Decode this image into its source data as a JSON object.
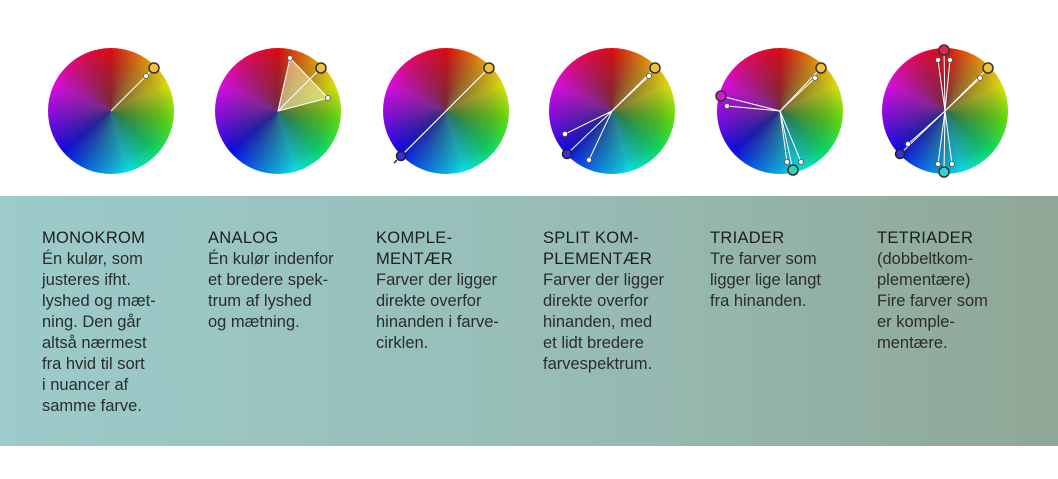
{
  "wheels": [
    {
      "name": "monokrom"
    },
    {
      "name": "analog"
    },
    {
      "name": "komplementaer"
    },
    {
      "name": "split-komplementaer"
    },
    {
      "name": "triader"
    },
    {
      "name": "tetriader"
    }
  ],
  "columns": [
    {
      "title_lines": [
        "MONOKROM"
      ],
      "body_lines": [
        "Én kulør, som",
        "justeres ifht.",
        "lyshed og mæt-",
        "ning. Den går",
        "altså nærmest",
        "fra hvid til sort",
        "i nuancer af",
        "samme farve."
      ]
    },
    {
      "title_lines": [
        "ANALOG"
      ],
      "body_lines": [
        "Én kulør indenfor",
        "et bredere spek-",
        "trum af lyshed",
        "og mætning."
      ]
    },
    {
      "title_lines": [
        "KOMPLE-",
        "MENTÆR"
      ],
      "body_lines": [
        "Farver der ligger",
        "direkte overfor",
        "hinanden i farve-",
        "cirklen."
      ]
    },
    {
      "title_lines": [
        "SPLIT KOM-",
        "PLEMENTÆR"
      ],
      "body_lines": [
        "Farver der ligger",
        "direkte overfor",
        "hinanden, med",
        "et lidt bredere",
        "farvespektrum."
      ]
    },
    {
      "title_lines": [
        "TRIADER"
      ],
      "body_lines": [
        "Tre farver som",
        "ligger lige langt",
        "fra hinanden."
      ]
    },
    {
      "title_lines": [
        "TETRIADER"
      ],
      "body_lines": [
        "(dobbeltkom-",
        "plementære)",
        "Fire farver som",
        "er komple-",
        "mentære."
      ]
    }
  ]
}
